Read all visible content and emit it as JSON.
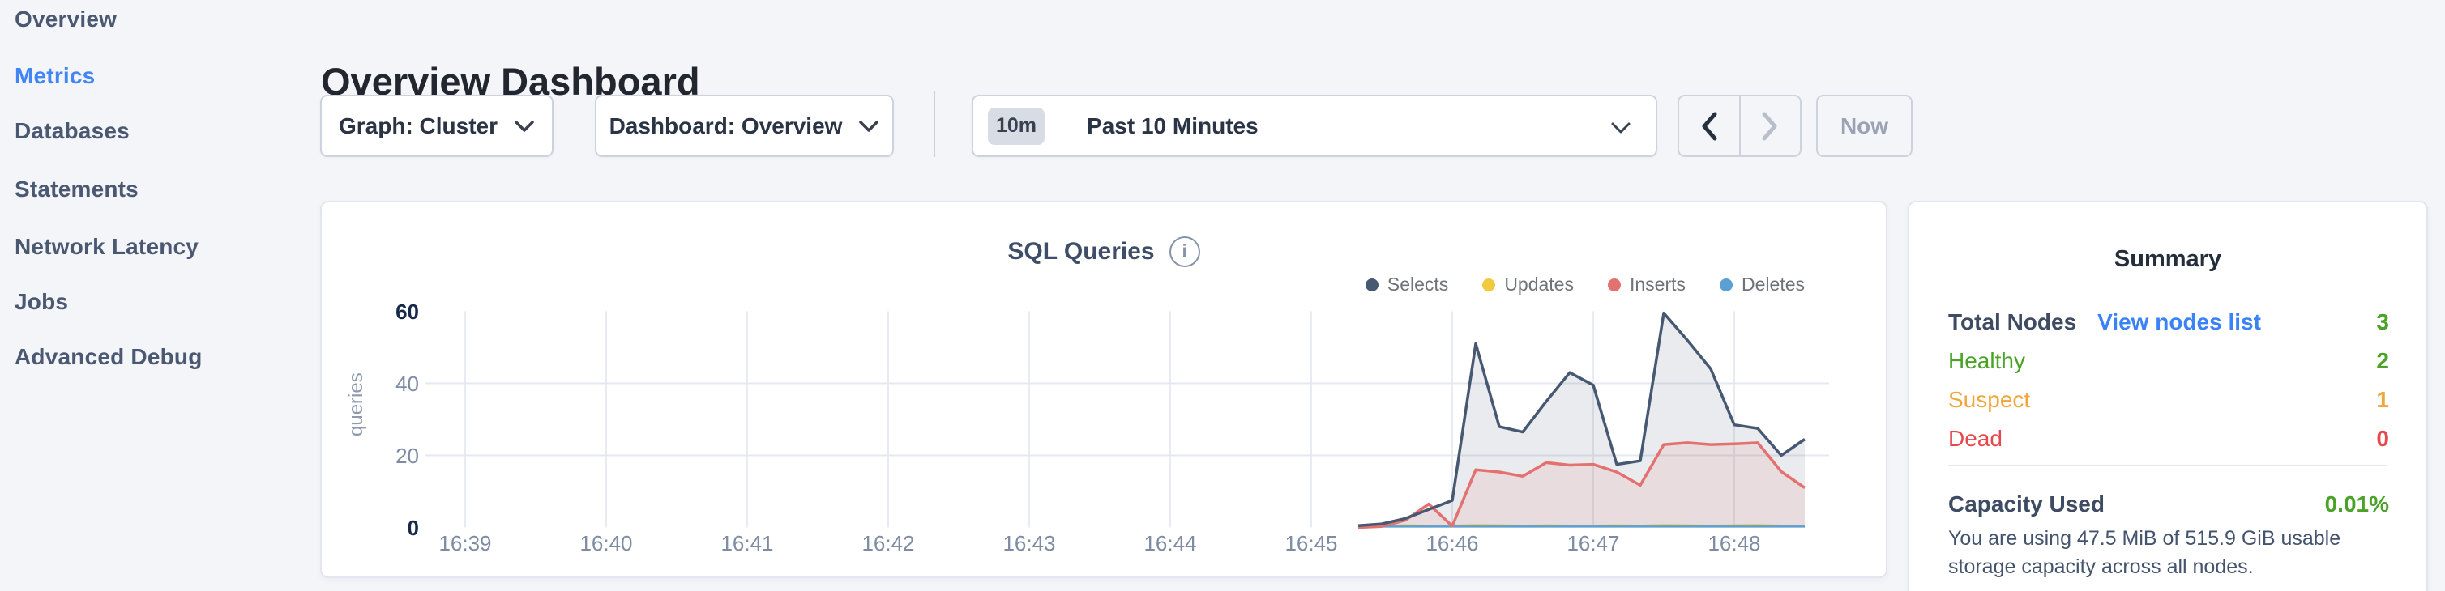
{
  "sidebar": {
    "items": [
      {
        "label": "Overview",
        "active": false
      },
      {
        "label": "Metrics",
        "active": true
      },
      {
        "label": "Databases",
        "active": false
      },
      {
        "label": "Statements",
        "active": false
      },
      {
        "label": "Network Latency",
        "active": false
      },
      {
        "label": "Jobs",
        "active": false
      },
      {
        "label": "Advanced Debug",
        "active": false
      }
    ]
  },
  "header": {
    "title": "Overview Dashboard"
  },
  "toolbar": {
    "graph_dropdown_label": "Graph: Cluster",
    "dashboard_dropdown_label": "Dashboard: Overview",
    "time_badge": "10m",
    "time_label": "Past 10 Minutes",
    "now_label": "Now"
  },
  "icons": {
    "info_glyph": "i"
  },
  "chart_data": {
    "type": "area",
    "title": "SQL Queries",
    "ylabel": "queries",
    "xlabel": "",
    "grid": true,
    "legend_position": "top-right",
    "x_ticks": [
      "16:39",
      "16:40",
      "16:41",
      "16:42",
      "16:43",
      "16:44",
      "16:45",
      "16:46",
      "16:47",
      "16:48"
    ],
    "y_ticks": [
      0,
      20,
      40,
      60
    ],
    "ylim": [
      0,
      60
    ],
    "sample_start_time": "16:45:20",
    "sample_interval_seconds": 10,
    "series": [
      {
        "name": "Selects",
        "color": "#475872",
        "fill": "rgba(71,88,114,0.12)",
        "values": [
          0.5,
          1,
          2.5,
          5,
          7.5,
          51,
          28,
          26.5,
          35,
          43,
          39.5,
          17.5,
          18.5,
          59.5,
          52,
          44,
          28.5,
          27.5,
          20,
          24.5
        ]
      },
      {
        "name": "Updates",
        "color": "#f2ca40",
        "fill": null,
        "values": [
          0.4,
          0.5,
          0.6,
          0.5,
          0.5,
          0.7,
          0.6,
          0.5,
          0.6,
          0.5,
          0.5,
          0.6,
          0.5,
          0.7,
          0.6,
          0.5,
          0.6,
          0.7,
          0.5,
          0.5
        ]
      },
      {
        "name": "Inserts",
        "color": "#e3716f",
        "fill": "rgba(227,113,111,0.12)",
        "values": [
          0,
          0.3,
          2,
          6.5,
          0.4,
          16,
          15.4,
          14.2,
          18,
          17.3,
          17.5,
          15.4,
          11.7,
          23,
          23.5,
          23,
          23.2,
          23.5,
          15.5,
          11
        ]
      },
      {
        "name": "Deletes",
        "color": "#5b9fd3",
        "fill": null,
        "values": [
          0.25,
          0.25,
          0.25,
          0.25,
          0.25,
          0.25,
          0.25,
          0.25,
          0.25,
          0.25,
          0.25,
          0.25,
          0.25,
          0.25,
          0.25,
          0.25,
          0.25,
          0.25,
          0.25,
          0.25
        ]
      }
    ]
  },
  "summary": {
    "title": "Summary",
    "total_nodes_label": "Total Nodes",
    "view_nodes_link": "View nodes list",
    "total_nodes_value": "3",
    "total_nodes_color": "#4aa327",
    "status_rows": [
      {
        "label": "Healthy",
        "value": "2",
        "color": "#4aa327"
      },
      {
        "label": "Suspect",
        "value": "1",
        "color": "#efa63c"
      },
      {
        "label": "Dead",
        "value": "0",
        "color": "#e8484d"
      }
    ],
    "capacity_label": "Capacity Used",
    "capacity_value": "0.01%",
    "capacity_value_color": "#4aa327",
    "capacity_description": "You are using 47.5 MiB of 515.9 GiB usable storage capacity across all nodes."
  },
  "colors": {
    "page_bg": "#f4f5f9",
    "active_nav": "#4285f4",
    "link_blue": "#3b82f6",
    "card_border": "#e2e6ee"
  }
}
